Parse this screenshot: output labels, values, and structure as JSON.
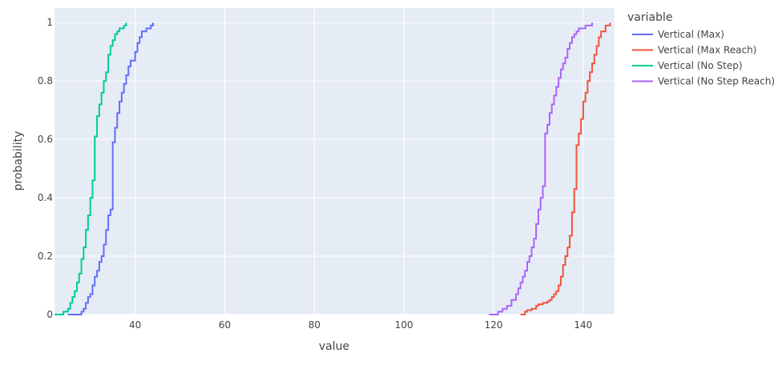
{
  "chart_data": {
    "type": "line",
    "subtype": "ecdf-step",
    "xlabel": "value",
    "ylabel": "probability",
    "xlim": [
      22,
      147
    ],
    "ylim": [
      0,
      1.05
    ],
    "xticks": [
      40,
      60,
      80,
      100,
      120,
      140
    ],
    "yticks": [
      0,
      0.2,
      0.4,
      0.6,
      0.8,
      1
    ],
    "ytick_labels": [
      "0",
      "0.2",
      "0.4",
      "0.6",
      "0.8",
      "1"
    ],
    "grid": true,
    "background": "#E5ECF6",
    "legend": {
      "title": "variable",
      "placement": "right"
    },
    "series": [
      {
        "name": "Vertical (Max)",
        "color": "#636EFA",
        "points": [
          [
            25,
            0
          ],
          [
            28,
            0.01
          ],
          [
            28.5,
            0.02
          ],
          [
            29,
            0.04
          ],
          [
            29.5,
            0.06
          ],
          [
            30,
            0.07
          ],
          [
            30.5,
            0.1
          ],
          [
            31,
            0.13
          ],
          [
            31.5,
            0.15
          ],
          [
            32,
            0.18
          ],
          [
            32.5,
            0.2
          ],
          [
            33,
            0.24
          ],
          [
            33.5,
            0.29
          ],
          [
            34,
            0.34
          ],
          [
            34.5,
            0.36
          ],
          [
            35,
            0.59
          ],
          [
            35.5,
            0.64
          ],
          [
            36,
            0.69
          ],
          [
            36.5,
            0.73
          ],
          [
            37,
            0.76
          ],
          [
            37.5,
            0.79
          ],
          [
            38,
            0.82
          ],
          [
            38.5,
            0.85
          ],
          [
            39,
            0.87
          ],
          [
            40,
            0.9
          ],
          [
            40.5,
            0.93
          ],
          [
            41,
            0.95
          ],
          [
            41.5,
            0.97
          ],
          [
            42.5,
            0.98
          ],
          [
            43.5,
            0.99
          ],
          [
            44,
            1.0
          ]
        ]
      },
      {
        "name": "Vertical (Max Reach)",
        "color": "#EF553B",
        "points": [
          [
            126,
            0
          ],
          [
            127,
            0.01
          ],
          [
            127.5,
            0.015
          ],
          [
            128.5,
            0.02
          ],
          [
            129.5,
            0.03
          ],
          [
            130,
            0.035
          ],
          [
            131,
            0.04
          ],
          [
            132,
            0.045
          ],
          [
            132.5,
            0.05
          ],
          [
            133,
            0.06
          ],
          [
            133.5,
            0.07
          ],
          [
            134,
            0.08
          ],
          [
            134.5,
            0.1
          ],
          [
            135,
            0.13
          ],
          [
            135.5,
            0.17
          ],
          [
            136,
            0.2
          ],
          [
            136.5,
            0.23
          ],
          [
            137,
            0.27
          ],
          [
            137.5,
            0.35
          ],
          [
            138,
            0.43
          ],
          [
            138.5,
            0.58
          ],
          [
            139,
            0.62
          ],
          [
            139.5,
            0.67
          ],
          [
            140,
            0.73
          ],
          [
            140.5,
            0.76
          ],
          [
            141,
            0.8
          ],
          [
            141.5,
            0.83
          ],
          [
            142,
            0.86
          ],
          [
            142.5,
            0.89
          ],
          [
            143,
            0.92
          ],
          [
            143.5,
            0.95
          ],
          [
            144,
            0.97
          ],
          [
            145,
            0.99
          ],
          [
            146,
            1.0
          ]
        ]
      },
      {
        "name": "Vertical (No Step)",
        "color": "#00CC96",
        "points": [
          [
            22,
            0
          ],
          [
            24,
            0.01
          ],
          [
            25,
            0.02
          ],
          [
            25.5,
            0.04
          ],
          [
            26,
            0.06
          ],
          [
            26.5,
            0.08
          ],
          [
            27,
            0.11
          ],
          [
            27.5,
            0.14
          ],
          [
            28,
            0.19
          ],
          [
            28.5,
            0.23
          ],
          [
            29,
            0.29
          ],
          [
            29.5,
            0.34
          ],
          [
            30,
            0.4
          ],
          [
            30.5,
            0.46
          ],
          [
            31,
            0.61
          ],
          [
            31.5,
            0.68
          ],
          [
            32,
            0.72
          ],
          [
            32.5,
            0.76
          ],
          [
            33,
            0.8
          ],
          [
            33.5,
            0.83
          ],
          [
            34,
            0.89
          ],
          [
            34.5,
            0.92
          ],
          [
            35,
            0.94
          ],
          [
            35.5,
            0.96
          ],
          [
            36,
            0.97
          ],
          [
            36.5,
            0.98
          ],
          [
            37.5,
            0.99
          ],
          [
            38,
            1.0
          ]
        ]
      },
      {
        "name": "Vertical (No Step Reach)",
        "color": "#AB63FA",
        "points": [
          [
            119,
            0
          ],
          [
            121,
            0.01
          ],
          [
            122,
            0.02
          ],
          [
            123,
            0.03
          ],
          [
            124,
            0.05
          ],
          [
            125,
            0.07
          ],
          [
            125.5,
            0.09
          ],
          [
            126,
            0.11
          ],
          [
            126.5,
            0.13
          ],
          [
            127,
            0.15
          ],
          [
            127.5,
            0.18
          ],
          [
            128,
            0.2
          ],
          [
            128.5,
            0.23
          ],
          [
            129,
            0.26
          ],
          [
            129.5,
            0.31
          ],
          [
            130,
            0.36
          ],
          [
            130.5,
            0.4
          ],
          [
            131,
            0.44
          ],
          [
            131.5,
            0.62
          ],
          [
            132,
            0.65
          ],
          [
            132.5,
            0.69
          ],
          [
            133,
            0.72
          ],
          [
            133.5,
            0.75
          ],
          [
            134,
            0.78
          ],
          [
            134.5,
            0.81
          ],
          [
            135,
            0.84
          ],
          [
            135.5,
            0.86
          ],
          [
            136,
            0.88
          ],
          [
            136.5,
            0.91
          ],
          [
            137,
            0.93
          ],
          [
            137.5,
            0.95
          ],
          [
            138,
            0.96
          ],
          [
            138.5,
            0.97
          ],
          [
            139,
            0.98
          ],
          [
            140.5,
            0.99
          ],
          [
            142,
            1.0
          ]
        ]
      }
    ]
  }
}
